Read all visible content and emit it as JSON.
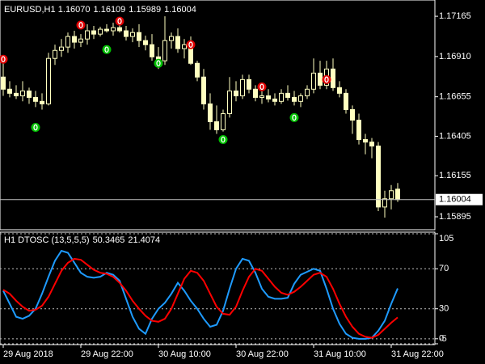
{
  "chart_data": [
    {
      "type": "candlestick",
      "title": "EURUSD,H1",
      "ohlc_labels": [
        "1.16070",
        "1.16109",
        "1.15989",
        "1.16004"
      ],
      "categories": [
        "29 Aug 2018",
        null,
        null,
        null,
        null,
        null,
        null,
        null,
        null,
        null,
        null,
        null,
        "29 Aug 22:00",
        null,
        null,
        null,
        null,
        null,
        null,
        null,
        null,
        null,
        null,
        null,
        "30 Aug 10:00",
        null,
        null,
        null,
        null,
        null,
        null,
        null,
        null,
        null,
        null,
        null,
        "30 Aug 22:00",
        null,
        null,
        null,
        null,
        null,
        null,
        null,
        null,
        null,
        null,
        null,
        "31 Aug 10:00",
        null,
        null,
        null,
        null,
        null,
        null,
        null,
        null,
        null,
        null,
        null,
        "31 Aug 22:00",
        null
      ],
      "open": [
        1.1678,
        1.16703,
        1.16677,
        1.16661,
        1.16692,
        1.16651,
        1.16626,
        1.1661,
        1.16898,
        1.16949,
        1.1697,
        1.17037,
        1.17001,
        1.17021,
        1.17073,
        1.17052,
        1.17083,
        1.17073,
        1.17093,
        1.17073,
        1.17037,
        1.17062,
        1.17011,
        1.16985,
        1.16908,
        1.16883,
        1.17011,
        1.17037,
        1.1696,
        1.16985,
        1.16867,
        1.1678,
        1.1661,
        1.16497,
        1.16446,
        1.16548,
        1.16692,
        1.16661,
        1.16764,
        1.16703,
        1.16651,
        1.16661,
        1.16641,
        1.16626,
        1.16677,
        1.16651,
        1.16626,
        1.16661,
        1.16703,
        1.16805,
        1.16728,
        1.16831,
        1.16713,
        1.16677,
        1.16574,
        1.16507,
        1.16384,
        1.16368,
        1.16343,
        1.15957,
        1.16009,
        1.1607
      ],
      "high": [
        1.16883,
        1.16754,
        1.16728,
        1.16754,
        1.16713,
        1.16692,
        1.16677,
        1.16934,
        1.16985,
        1.17021,
        1.17062,
        1.17073,
        1.17052,
        1.17114,
        1.17104,
        1.17098,
        1.17114,
        1.17124,
        1.17139,
        1.17104,
        1.17088,
        1.17114,
        1.17042,
        1.17052,
        1.1697,
        1.17165,
        1.17062,
        1.17088,
        1.17021,
        1.17037,
        1.16883,
        1.16831,
        1.16677,
        1.166,
        1.16574,
        1.1678,
        1.16754,
        1.16795,
        1.16795,
        1.16728,
        1.16692,
        1.16703,
        1.16677,
        1.16703,
        1.16728,
        1.16692,
        1.16677,
        1.16728,
        1.16898,
        1.16883,
        1.16883,
        1.16898,
        1.16754,
        1.16703,
        1.166,
        1.16548,
        1.1642,
        1.16394,
        1.16368,
        1.1606,
        1.16096,
        1.16109
      ],
      "low": [
        1.16661,
        1.16651,
        1.16641,
        1.16626,
        1.1661,
        1.1659,
        1.16574,
        1.166,
        1.16857,
        1.16908,
        1.16934,
        1.1696,
        1.1697,
        1.16985,
        1.17021,
        1.17037,
        1.17062,
        1.17042,
        1.17062,
        1.17011,
        1.17001,
        1.1697,
        1.16949,
        1.16883,
        1.16831,
        1.16857,
        1.1696,
        1.16934,
        1.16898,
        1.16857,
        1.16754,
        1.16574,
        1.16446,
        1.1642,
        1.16435,
        1.16523,
        1.16626,
        1.16641,
        1.16677,
        1.16626,
        1.1661,
        1.1662,
        1.166,
        1.1661,
        1.16631,
        1.166,
        1.1659,
        1.16641,
        1.16677,
        1.16703,
        1.16703,
        1.16692,
        1.16651,
        1.16548,
        1.1642,
        1.16353,
        1.16291,
        1.16266,
        1.15931,
        1.1589,
        1.15942,
        1.15989
      ],
      "close": [
        1.16703,
        1.16677,
        1.16661,
        1.16692,
        1.16651,
        1.16626,
        1.1661,
        1.16898,
        1.16949,
        1.1697,
        1.17037,
        1.17001,
        1.17021,
        1.17073,
        1.17052,
        1.17083,
        1.17073,
        1.17093,
        1.17073,
        1.17037,
        1.17062,
        1.17011,
        1.16985,
        1.16908,
        1.16883,
        1.17011,
        1.17037,
        1.1696,
        1.16985,
        1.16867,
        1.1678,
        1.1661,
        1.16497,
        1.16446,
        1.16548,
        1.16692,
        1.16661,
        1.16764,
        1.16703,
        1.16651,
        1.16661,
        1.16641,
        1.16626,
        1.16677,
        1.16651,
        1.16626,
        1.16661,
        1.16703,
        1.16805,
        1.16728,
        1.16831,
        1.16713,
        1.16677,
        1.16574,
        1.16507,
        1.16384,
        1.16368,
        1.16343,
        1.15957,
        1.16009,
        1.1606,
        1.16004
      ],
      "color": "#ffffc0",
      "current_price": {
        "value": 1.16004,
        "label": "1.16004"
      },
      "signals": [
        {
          "color": "#e00000",
          "indices": [
            0,
            12,
            18,
            29,
            40,
            50
          ],
          "values": [
            1.16893,
            1.17109,
            1.17134,
            1.16985,
            1.16718,
            1.16764
          ]
        },
        {
          "color": "#00c000",
          "indices": [
            5,
            16,
            24,
            34,
            45
          ],
          "values": [
            1.16461,
            1.16954,
            1.16867,
            1.16384,
            1.16523
          ]
        }
      ],
      "ylim": [
        1.15813,
        1.17268
      ],
      "yticks": [
        {
          "value": 1.17165,
          "label": "1.17165"
        },
        {
          "value": 1.1691,
          "label": "1.16910"
        },
        {
          "value": 1.16655,
          "label": "1.16655"
        },
        {
          "value": 1.16405,
          "label": "1.16405"
        },
        {
          "value": 1.16155,
          "label": "1.16155"
        },
        {
          "value": 1.15895,
          "label": "1.15895"
        }
      ]
    },
    {
      "type": "line",
      "title": "H1 DTOSC (13,5,5,5)",
      "series": [
        {
          "color": "#1e9bff",
          "values": [
            48,
            35,
            22,
            20,
            23,
            30,
            45,
            62,
            78,
            88,
            86,
            76,
            66,
            62,
            61,
            62,
            66,
            64,
            58,
            40,
            22,
            10,
            5,
            20,
            30,
            36,
            45,
            56,
            48,
            38,
            30,
            20,
            12,
            14,
            28,
            50,
            70,
            80,
            78,
            66,
            50,
            42,
            40,
            40,
            41,
            55,
            64,
            67,
            70,
            68,
            50,
            30,
            15,
            5,
            1,
            0,
            0,
            1,
            8,
            18,
            35,
            50.3465
          ]
        },
        {
          "color": "#ff0000",
          "values": [
            49,
            45,
            38,
            32,
            28,
            29,
            33,
            42,
            55,
            68,
            76,
            80,
            79,
            74,
            69,
            66,
            65,
            62,
            56,
            48,
            38,
            30,
            23,
            18,
            17,
            20,
            30,
            45,
            60,
            68,
            66,
            58,
            45,
            32,
            25,
            24,
            32,
            48,
            62,
            70,
            68,
            60,
            52,
            46,
            44,
            47,
            52,
            58,
            64,
            66,
            62,
            50,
            35,
            22,
            12,
            5,
            2,
            1,
            4,
            10,
            16,
            21.4074
          ]
        }
      ],
      "ylim": [
        -5,
        105
      ],
      "yticks": [
        105,
        70,
        30,
        0,
        -5
      ],
      "grid": true
    }
  ]
}
